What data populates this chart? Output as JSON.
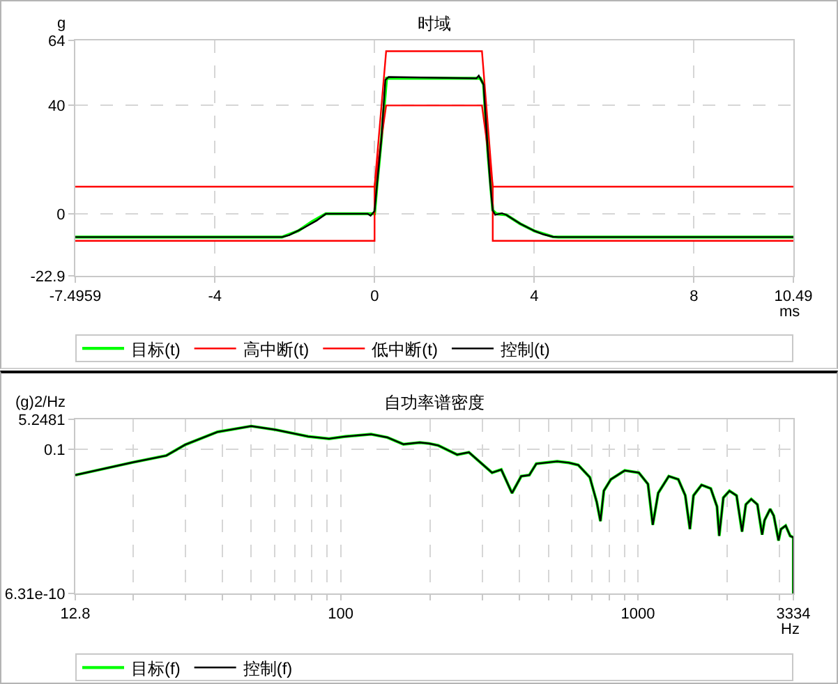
{
  "chart_data": [
    {
      "type": "line",
      "title": "时域",
      "xlabel": "ms",
      "ylabel": "g",
      "xlim": [
        -7.4959,
        10.49
      ],
      "ylim": [
        -22.9,
        64
      ],
      "xticks": [
        -7.4959,
        -4,
        0,
        4,
        8,
        10.49
      ],
      "yticks": [
        -22.9,
        0,
        40,
        64
      ],
      "grid": true,
      "legend": "bottom",
      "series": [
        {
          "name": "目标(t)",
          "color": "#00ff00",
          "x": [
            -7.4959,
            -2.32,
            -1.91,
            -1.57,
            -1.22,
            0,
            0.06,
            0.17,
            0.3,
            2.65,
            2.73,
            2.84,
            2.96,
            3.05,
            3.3,
            3.65,
            4.0,
            4.47,
            4.6,
            10.49
          ],
          "values": [
            -8.6,
            -8.6,
            -6.3,
            -2.9,
            0,
            0,
            10.6,
            27.5,
            50,
            50,
            47.7,
            22.4,
            1.3,
            0,
            -0.4,
            -3.7,
            -6.3,
            -8.5,
            -8.6,
            -8.6
          ]
        },
        {
          "name": "高中断(t)",
          "color": "#ff0000",
          "x": [
            -7.4959,
            0,
            0.29,
            2.69,
            2.96,
            10.49
          ],
          "values": [
            10,
            10,
            60,
            60,
            10,
            10
          ]
        },
        {
          "name": "低中断(t)",
          "color": "#ff0000",
          "x": [
            -7.4959,
            0,
            0,
            0.29,
            2.69,
            2.96,
            2.96,
            10.49
          ],
          "values": [
            -10,
            -10,
            10,
            40,
            40,
            10,
            -10,
            -10
          ]
        },
        {
          "name": "控制(t)",
          "color": "#000000",
          "x": [
            -7.4959,
            -2.32,
            -2.14,
            -1.8,
            -1.45,
            -1.22,
            -0.17,
            -0.1,
            0,
            0.06,
            0.17,
            0.27,
            0.35,
            2.55,
            2.61,
            2.73,
            2.78,
            2.84,
            2.9,
            2.96,
            3.02,
            3.19,
            3.3,
            3.65,
            4.0,
            4.23,
            4.47,
            4.6,
            10.49
          ],
          "values": [
            -8.6,
            -8.6,
            -7.9,
            -5.4,
            -2.5,
            0,
            0,
            -0.7,
            1,
            10.6,
            27.5,
            49.4,
            50.5,
            50,
            51,
            47.7,
            35.9,
            22.4,
            10.6,
            1.3,
            -0.4,
            0.2,
            -0.4,
            -3.7,
            -6.3,
            -7.6,
            -8.5,
            -8.6,
            -8.6
          ]
        }
      ]
    },
    {
      "type": "line",
      "title": "自功率谱密度",
      "xlabel": "Hz",
      "ylabel": "(g)2/Hz",
      "log": "xy",
      "xlim": [
        12.8,
        3334
      ],
      "ylim": [
        6.31e-10,
        5.2481
      ],
      "xticks": [
        12.8,
        {
          "value": 20,
          "label": null
        },
        {
          "value": 30,
          "label": null
        },
        {
          "value": 40,
          "label": null
        },
        {
          "value": 50,
          "label": null
        },
        {
          "value": 60,
          "label": null
        },
        {
          "value": 70,
          "label": null
        },
        {
          "value": 80,
          "label": null
        },
        {
          "value": 90,
          "label": null
        },
        100,
        {
          "value": 200,
          "label": null
        },
        {
          "value": 300,
          "label": null
        },
        {
          "value": 400,
          "label": null
        },
        {
          "value": 500,
          "label": null
        },
        {
          "value": 600,
          "label": null
        },
        {
          "value": 700,
          "label": null
        },
        {
          "value": 800,
          "label": null
        },
        {
          "value": 900,
          "label": null
        },
        1000,
        {
          "value": 2000,
          "label": null
        },
        {
          "value": 3000,
          "label": null
        },
        3334
      ],
      "yticks": [
        6.31e-10,
        0.1,
        5.2481
      ],
      "grid": true,
      "legend": "bottom",
      "x": [
        12.8,
        20,
        25.9,
        30,
        38.5,
        50,
        60.4,
        77.7,
        91.4,
        103.7,
        126.5,
        143.5,
        162.6,
        184.6,
        198.6,
        213,
        246.5,
        270,
        323,
        347,
        377,
        405,
        431,
        455,
        535,
        586,
        630,
        689,
        727,
        748,
        768,
        811,
        903,
        1007,
        1081,
        1122,
        1170,
        1270,
        1367,
        1443,
        1496,
        1538,
        1637,
        1758,
        1845,
        1877,
        1938,
        2032,
        2147,
        2240,
        2307,
        2406,
        2523,
        2617,
        2667,
        2786,
        2864,
        2972,
        3027,
        3141,
        3252,
        3334,
        3334
      ],
      "series": [
        {
          "name": "目标(f)",
          "color": "#00ff00",
          "values": [
            0.0035,
            0.0186,
            0.045,
            0.188,
            1.0,
            2.15,
            1.33,
            0.55,
            0.41,
            0.55,
            0.74,
            0.49,
            0.2,
            0.25,
            0.22,
            0.17,
            0.051,
            0.069,
            0.0048,
            0.0072,
            0.00033,
            0.003,
            0.0035,
            0.0155,
            0.021,
            0.0176,
            0.013,
            0.0026,
            0.0001,
            8.3e-06,
            0.00044,
            0.002,
            0.0064,
            0.0048,
            0.00107,
            5.1e-06,
            0.00033,
            0.003,
            0.002,
            0.00024,
            2.9e-06,
            0.00024,
            0.00096,
            0.0006,
            5.6e-05,
            1.2e-06,
            0.00018,
            0.00044,
            0.00024,
            2.1e-06,
            7.4e-05,
            0.00015,
            7.4e-05,
            1.4e-06,
            9.4e-06,
            4.1e-05,
            1.7e-05,
            6.5e-07,
            2.9e-06,
            4.6e-06,
            1.2e-06,
            9.8e-07,
            6.31e-10
          ]
        },
        {
          "name": "控制(f)",
          "color": "#000000",
          "values": [
            0.0035,
            0.0186,
            0.045,
            0.188,
            1.0,
            2.15,
            1.33,
            0.55,
            0.41,
            0.55,
            0.74,
            0.49,
            0.2,
            0.25,
            0.22,
            0.17,
            0.051,
            0.069,
            0.0048,
            0.0072,
            0.00033,
            0.003,
            0.0035,
            0.0155,
            0.021,
            0.0176,
            0.013,
            0.0026,
            0.0001,
            8.3e-06,
            0.00044,
            0.002,
            0.0064,
            0.0048,
            0.00107,
            5.1e-06,
            0.00033,
            0.003,
            0.002,
            0.00024,
            2.9e-06,
            0.00024,
            0.00096,
            0.0006,
            5.6e-05,
            1.2e-06,
            0.00018,
            0.00044,
            0.00024,
            2.1e-06,
            7.4e-05,
            0.00015,
            7.4e-05,
            1.4e-06,
            9.4e-06,
            4.1e-05,
            1.7e-05,
            6.5e-07,
            2.9e-06,
            4.6e-06,
            1.2e-06,
            9.8e-07,
            6.31e-10
          ]
        }
      ]
    }
  ]
}
